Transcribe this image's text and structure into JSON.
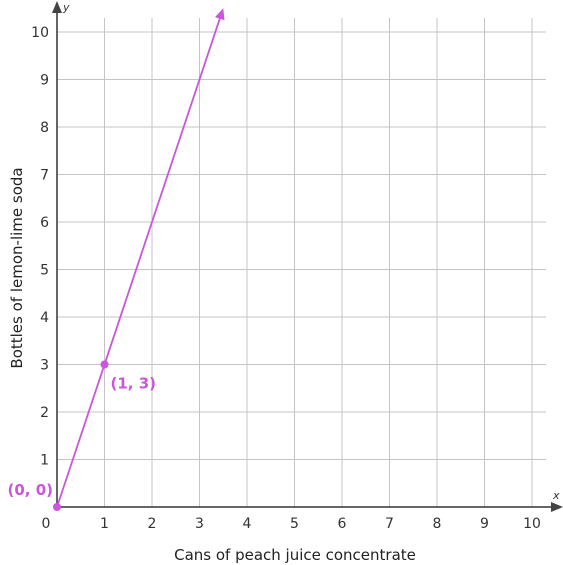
{
  "chart_data": {
    "type": "line",
    "xlabel": "Cans of peach juice concentrate",
    "ylabel": "Bottles of lemon-lime soda",
    "x_axis_letter": "x",
    "y_axis_letter": "y",
    "xlim": [
      0,
      10
    ],
    "ylim": [
      0,
      10
    ],
    "xticks": [
      0,
      1,
      2,
      3,
      4,
      5,
      6,
      7,
      8,
      9,
      10
    ],
    "yticks": [
      1,
      2,
      3,
      4,
      5,
      6,
      7,
      8,
      9,
      10
    ],
    "grid": true,
    "color": "#cc55dd",
    "series": [
      {
        "x": [
          0,
          3.5
        ],
        "y": [
          0,
          10.5
        ]
      }
    ],
    "points": [
      {
        "x": 0,
        "y": 0,
        "label": "(0, 0)"
      },
      {
        "x": 1,
        "y": 3,
        "label": "(1, 3)"
      }
    ]
  }
}
